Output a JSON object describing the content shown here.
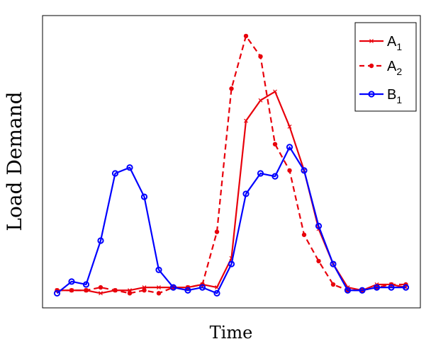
{
  "chart_data": {
    "type": "line",
    "xlabel": "Time",
    "ylabel": "Load Demand",
    "x": [
      0,
      1,
      2,
      3,
      4,
      5,
      6,
      7,
      8,
      9,
      10,
      11,
      12,
      13,
      14,
      15,
      16,
      17,
      18,
      19,
      20,
      21,
      22,
      23,
      24
    ],
    "xlim": [
      -1,
      25
    ],
    "ylim": [
      0.0,
      1.0
    ],
    "grid": false,
    "ticks_visible": false,
    "legend_position": "top-right",
    "series": [
      {
        "name": "A",
        "name_subscript": "1",
        "color": "#e8000b",
        "line_style": "solid",
        "marker": "x",
        "values": [
          0.06,
          0.06,
          0.06,
          0.05,
          0.06,
          0.06,
          0.07,
          0.07,
          0.07,
          0.07,
          0.08,
          0.07,
          0.17,
          0.64,
          0.71,
          0.74,
          0.62,
          0.47,
          0.27,
          0.15,
          0.07,
          0.06,
          0.08,
          0.08,
          0.07
        ]
      },
      {
        "name": "A",
        "name_subscript": "2",
        "color": "#e8000b",
        "line_style": "dashed",
        "marker": "dot",
        "values": [
          0.06,
          0.06,
          0.06,
          0.07,
          0.06,
          0.05,
          0.06,
          0.05,
          0.07,
          0.07,
          0.08,
          0.26,
          0.75,
          0.93,
          0.86,
          0.56,
          0.47,
          0.25,
          0.16,
          0.08,
          0.06,
          0.06,
          0.07,
          0.08,
          0.08
        ]
      },
      {
        "name": "B",
        "name_subscript": "1",
        "color": "#0000ff",
        "line_style": "solid",
        "marker": "circle",
        "values": [
          0.05,
          0.09,
          0.08,
          0.23,
          0.46,
          0.48,
          0.38,
          0.13,
          0.07,
          0.06,
          0.07,
          0.05,
          0.15,
          0.39,
          0.46,
          0.45,
          0.55,
          0.47,
          0.28,
          0.15,
          0.06,
          0.06,
          0.07,
          0.07,
          0.07
        ]
      }
    ]
  }
}
